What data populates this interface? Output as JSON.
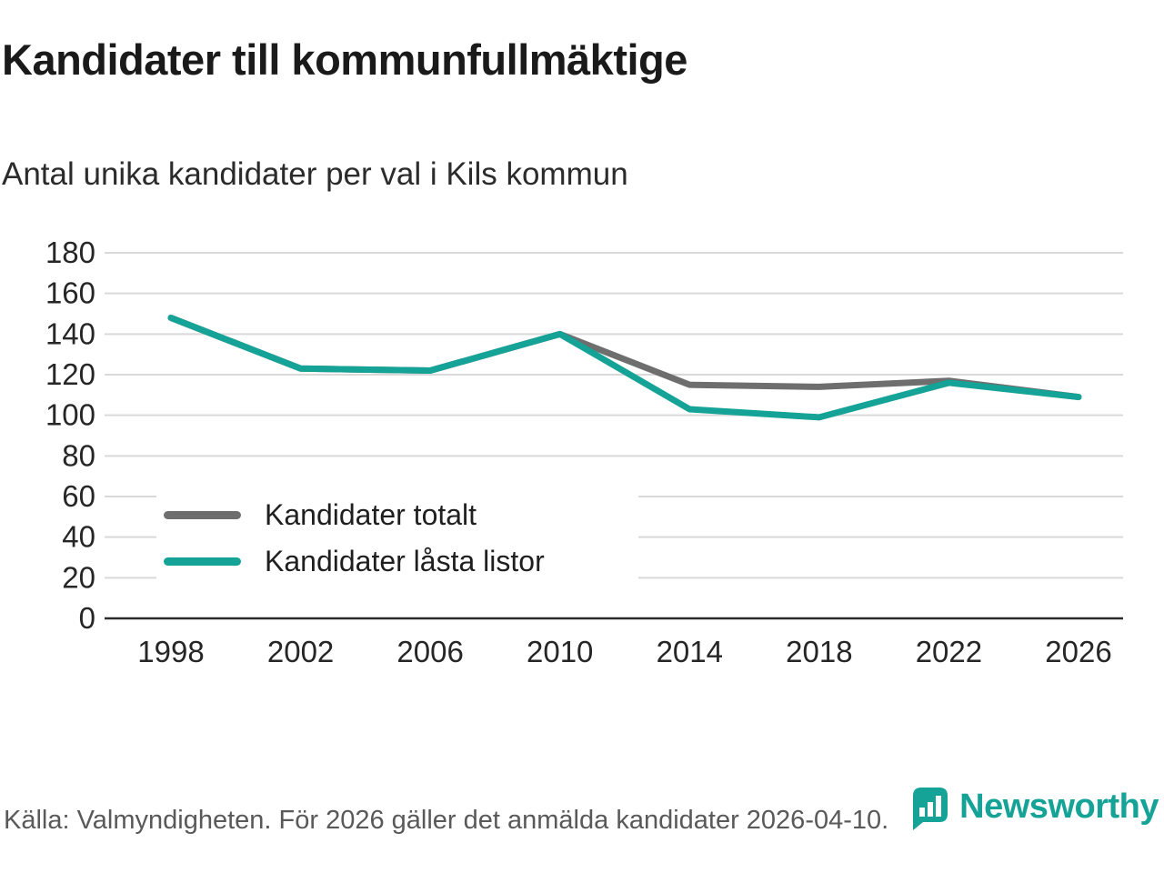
{
  "header": {
    "title": "Kandidater till kommunfullmäktige",
    "subtitle": "Antal unika kandidater per val i Kils kommun"
  },
  "chart_data": {
    "type": "line",
    "x": [
      "1998",
      "2002",
      "2006",
      "2010",
      "2014",
      "2018",
      "2022",
      "2026"
    ],
    "series": [
      {
        "name": "Kandidater totalt",
        "color": "#6e6e6e",
        "values": [
          148,
          123,
          122,
          140,
          115,
          114,
          117,
          109
        ]
      },
      {
        "name": "Kandidater låsta listor",
        "color": "#14a396",
        "values": [
          148,
          123,
          122,
          140,
          103,
          99,
          116,
          109
        ]
      }
    ],
    "ylim": [
      0,
      180
    ],
    "ytick_step": 20,
    "yticks": [
      0,
      20,
      40,
      60,
      80,
      100,
      120,
      140,
      160,
      180
    ],
    "grid": true,
    "legend_position": "inside-bottom-left"
  },
  "footer": {
    "source": "Källa: Valmyndigheten. För 2026 gäller det anmälda kandidater 2026-04-10.",
    "brand": "Newsworthy"
  },
  "colors": {
    "accent": "#14a396",
    "gray_series": "#6e6e6e",
    "grid": "#d9d9d9",
    "axis": "#2b2b2b",
    "text": "#262626",
    "muted": "#595959"
  }
}
